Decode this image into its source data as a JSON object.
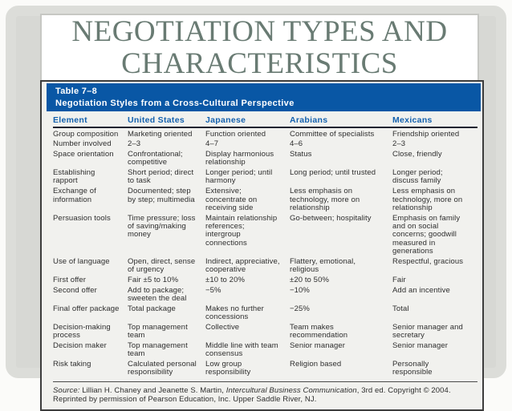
{
  "slide": {
    "title_line1": "NEGOTIATION TYPES AND",
    "title_line2": "CHARACTERISTICS"
  },
  "table": {
    "label": "Table 7–8",
    "caption": "Negotiation Styles from a Cross-Cultural Perspective",
    "columns": [
      "Element",
      "United States",
      "Japanese",
      "Arabians",
      "Mexicans"
    ],
    "rows": [
      [
        "Group composition",
        "Marketing oriented",
        "Function oriented",
        "Committee of specialists",
        "Friendship oriented"
      ],
      [
        "Number involved",
        "2–3",
        "4–7",
        "4–6",
        "2–3"
      ],
      [
        "Space orientation",
        "Confrontational; competitive",
        "Display harmonious relationship",
        "Status",
        "Close, friendly"
      ],
      [
        "Establishing rapport",
        "Short period; direct to task",
        "Longer period; until harmony",
        "Long period; until trusted",
        "Longer period; discuss family"
      ],
      [
        "Exchange of information",
        "Documented; step by step; multimedia",
        "Extensive; concentrate on receiving side",
        "Less emphasis on technology, more on relationship",
        "Less emphasis on technology, more on relationship"
      ],
      [
        "Persuasion tools",
        "Time pressure; loss of saving/making money",
        "Maintain relationship references; intergroup connections",
        "Go-between; hospitality",
        "Emphasis on family and on social concerns; goodwill measured in generations"
      ],
      [
        "Use of language",
        "Open, direct, sense of urgency",
        "Indirect, appreciative, cooperative",
        "Flattery, emotional, religious",
        "Respectful, gracious"
      ],
      [
        "First offer",
        "Fair ±5 to 10%",
        "±10 to 20%",
        "±20 to 50%",
        "Fair"
      ],
      [
        "Second offer",
        "Add to package; sweeten the deal",
        "−5%",
        "−10%",
        "Add an incentive"
      ],
      [
        "Final offer package",
        "Total package",
        "Makes no further concessions",
        "−25%",
        "Total"
      ],
      [
        "Decision-making process",
        "Top management team",
        "Collective",
        "Team makes recommendation",
        "Senior manager and secretary"
      ],
      [
        "Decision maker",
        "Top management team",
        "Middle line with team consensus",
        "Senior manager",
        "Senior manager"
      ],
      [
        "Risk taking",
        "Calculated personal responsibility",
        "Low group responsibility",
        "Religion based",
        "Personally responsible"
      ]
    ],
    "source": {
      "label": "Source:",
      "text_before_title": " Lillian H. Chaney and Jeanette S. Martin, ",
      "book_title": "Intercultural Business Communication",
      "text_after_title": ", 3rd ed. Copyright © 2004. Reprinted by permission of Pearson Education, Inc. Upper Saddle River, NJ."
    }
  },
  "colors": {
    "table_header_bg": "#0957a5",
    "column_header_text": "#1461ae",
    "title_text": "#697b73",
    "body_text": "#2e2e2e"
  }
}
